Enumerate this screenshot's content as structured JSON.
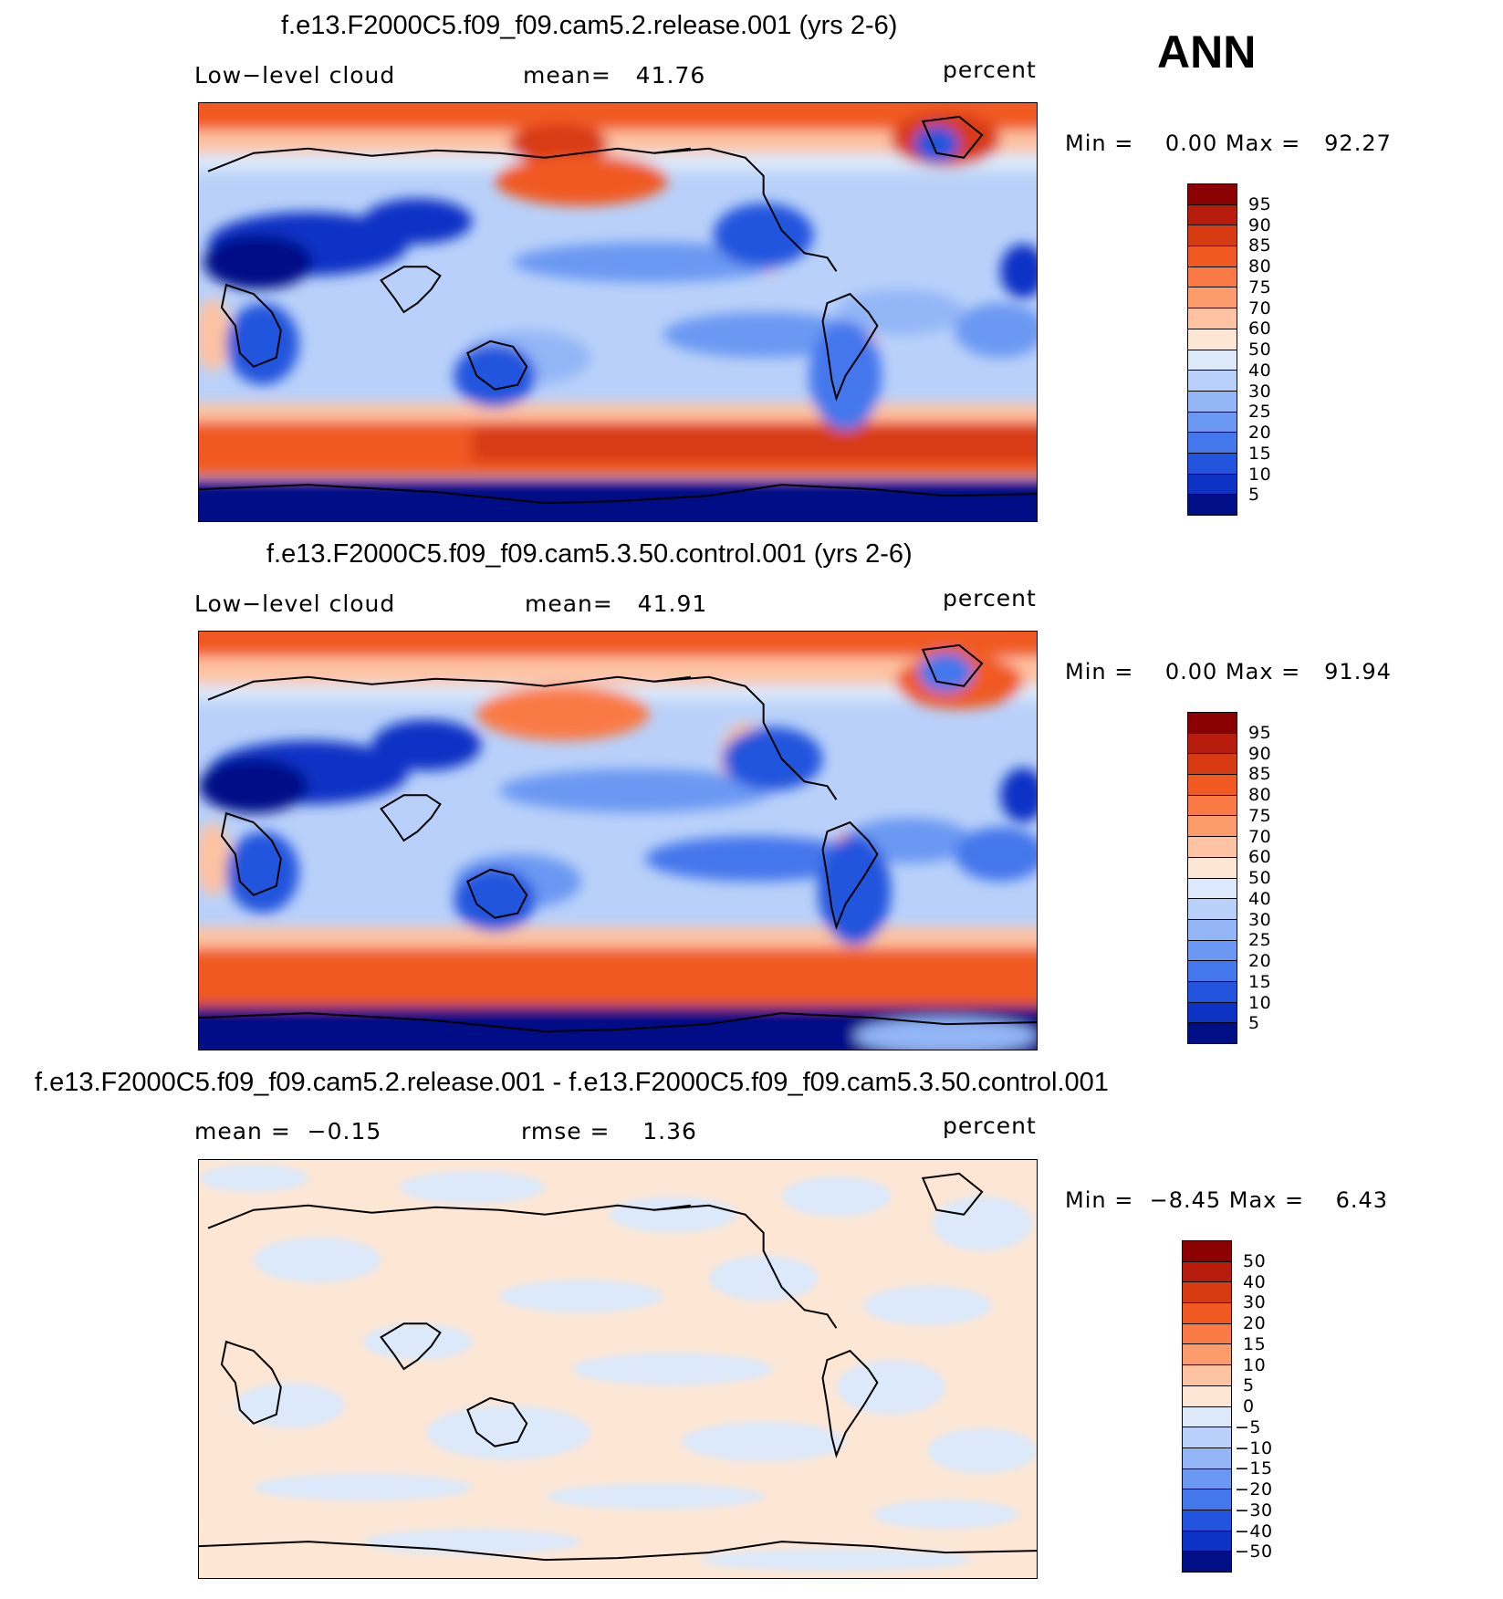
{
  "season": "ANN",
  "panels": [
    {
      "title": "f.e13.F2000C5.f09_f09.cam5.2.release.001 (yrs 2-6)",
      "left_label": "Low−level cloud",
      "center_label": "mean=   41.76",
      "units": "percent",
      "minmax": "Min =    0.00 Max =   92.27",
      "scale": "cloud"
    },
    {
      "title": "f.e13.F2000C5.f09_f09.cam5.3.50.control.001 (yrs 2-6)",
      "left_label": "Low−level cloud",
      "center_label": "mean=   41.91",
      "units": "percent",
      "minmax": "Min =    0.00 Max =   91.94",
      "scale": "cloud"
    },
    {
      "title": "f.e13.F2000C5.f09_f09.cam5.2.release.001 - f.e13.F2000C5.f09_f09.cam5.3.50.control.001",
      "left_label": "mean =  −0.15",
      "center_label": "rmse =    1.36",
      "units": "percent",
      "minmax": "Min =  −8.45 Max =    6.43",
      "scale": "diff"
    }
  ],
  "colorbars": {
    "cloud": {
      "levels": [
        "95",
        "90",
        "85",
        "80",
        "75",
        "70",
        "60",
        "50",
        "40",
        "30",
        "25",
        "20",
        "15",
        "10",
        "5"
      ],
      "colors": [
        "#8b0000",
        "#b71c0c",
        "#d83a12",
        "#f05a22",
        "#fa7a45",
        "#fc9c6c",
        "#fdc3a3",
        "#fde6d4",
        "#dbe9fb",
        "#b9d1fa",
        "#93b6f7",
        "#6b98f2",
        "#4577ec",
        "#2354dd",
        "#0d33c5",
        "#000f86"
      ]
    },
    "diff": {
      "levels": [
        "50",
        "40",
        "30",
        "20",
        "15",
        "10",
        "5",
        "0",
        "−5",
        "−10",
        "−15",
        "−20",
        "−30",
        "−40",
        "−50"
      ],
      "colors": [
        "#8b0000",
        "#b71c0c",
        "#d83a12",
        "#f05a22",
        "#fa7a45",
        "#fc9c6c",
        "#fdc3a3",
        "#fde6d4",
        "#dbe9fb",
        "#b9d1fa",
        "#93b6f7",
        "#6b98f2",
        "#4577ec",
        "#2354dd",
        "#0d33c5",
        "#000f86"
      ]
    }
  }
}
